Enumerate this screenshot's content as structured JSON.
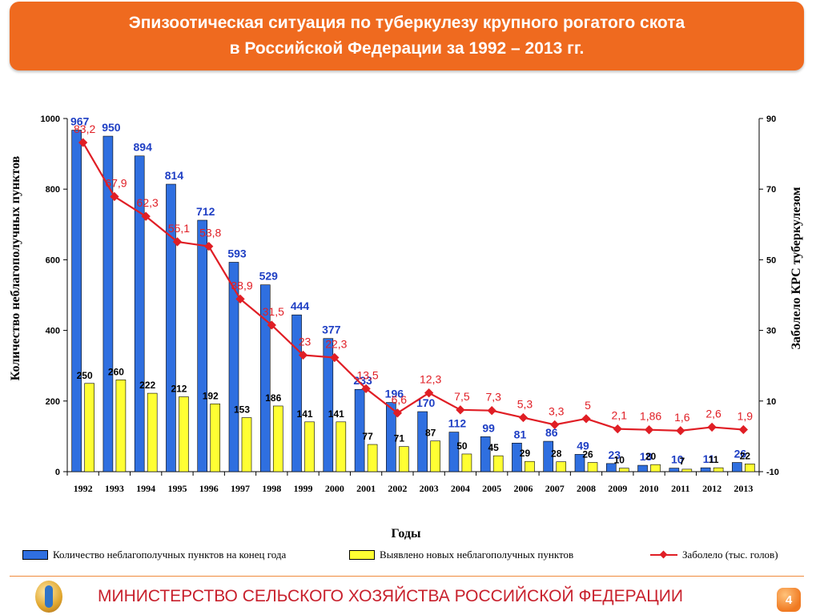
{
  "header": {
    "title_line1": "Эпизоотическая ситуация по  туберкулезу крупного рогатого скота",
    "title_line2": "в Российской Федерации за 1992 – 2013 гг."
  },
  "chart_data": {
    "type": "bar",
    "title": "Эпизоотическая ситуация по  туберкулезу крупного рогатого скота в Российской Федерации за 1992 – 2013 гг.",
    "xlabel": "Годы",
    "ylabel": "Количество неблагополучных пунктов",
    "y2label": "Заболело КРС туберкулезом",
    "categories": [
      "1992",
      "1993",
      "1994",
      "1995",
      "1996",
      "1997",
      "1998",
      "1999",
      "2000",
      "2001",
      "2002",
      "2003",
      "2004",
      "2005",
      "2006",
      "2007",
      "2008",
      "2009",
      "2010",
      "2011",
      "2012",
      "2013"
    ],
    "ylim": [
      0,
      1000
    ],
    "yticks": [
      0,
      200,
      400,
      600,
      800,
      1000
    ],
    "y2lim": [
      -10,
      90
    ],
    "y2ticks": [
      -10,
      10,
      30,
      50,
      70,
      90
    ],
    "grid": false,
    "legend_position": "bottom",
    "series": [
      {
        "name": "Количество  неблагополучных  пунктов  на  конец  года",
        "kind": "bar",
        "axis": "left",
        "color": "#2f6fe0",
        "values": [
          967,
          950,
          894,
          814,
          712,
          593,
          529,
          444,
          377,
          233,
          196,
          170,
          112,
          99,
          81,
          86,
          49,
          23,
          18,
          10,
          11,
          26
        ],
        "labels": [
          "967",
          "950",
          "894",
          "814",
          "712",
          "593",
          "529",
          "444",
          "377",
          "233",
          "196",
          "170",
          "112",
          "99",
          "81",
          "86",
          "49",
          "23",
          "18",
          "10",
          "11",
          "26"
        ]
      },
      {
        "name": "Выявлено  новых  неблагополучных  пунктов",
        "kind": "bar",
        "axis": "left",
        "color": "#ffff33",
        "values": [
          250,
          260,
          222,
          212,
          192,
          153,
          186,
          141,
          141,
          77,
          71,
          87,
          50,
          45,
          29,
          28,
          26,
          10,
          20,
          7,
          11,
          22
        ],
        "labels": [
          "250",
          "260",
          "222",
          "212",
          "192",
          "153",
          "186",
          "141",
          "141",
          "77",
          "71",
          "87",
          "50",
          "45",
          "29",
          "28",
          "26",
          "10",
          "20",
          "7",
          "11",
          "22"
        ]
      },
      {
        "name": "Заболело (тыс. голов)",
        "kind": "line",
        "axis": "right",
        "color": "#e01e25",
        "values": [
          83.2,
          67.9,
          62.3,
          55.1,
          53.8,
          38.9,
          31.5,
          23,
          22.3,
          13.5,
          6.6,
          12.3,
          7.5,
          7.3,
          5.3,
          3.3,
          5,
          2.1,
          1.86,
          1.6,
          2.6,
          1.9
        ],
        "labels": [
          "83,2",
          "67,9",
          "62,3",
          "55,1",
          "53,8",
          "38,9",
          "31,5",
          "23",
          "22,3",
          "13,5",
          "6,6",
          "12,3",
          "7,5",
          "7,3",
          "5,3",
          "3,3",
          "5",
          "2,1",
          "1,86",
          "1,6",
          "2,6",
          "1,9"
        ]
      }
    ]
  },
  "footer": {
    "ministry": "МИНИСТЕРСТВО СЕЛЬСКОГО ХОЗЯЙСТВА РОССИЙСКОЙ ФЕДЕРАЦИИ",
    "page_number": "4"
  }
}
